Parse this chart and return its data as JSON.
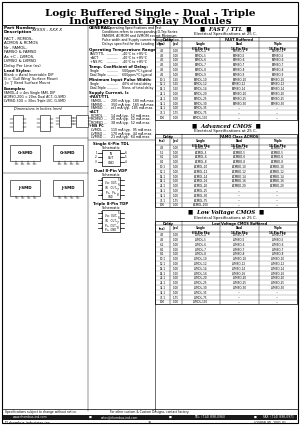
{
  "title_line1": "Logic Buffered Single - Dual - Triple",
  "title_line2": "Independent Delay Modules",
  "bg_color": "#ffffff",
  "pn_label": "Part Number",
  "pn_desc": "Description",
  "pn_format": "XXXXX - XXX X",
  "pn_lines": [
    [
      "FACT - RCMOS,",
      "ACMOS & RCMOS"
    ],
    [
      "Nr - FAMOL,",
      "FAMSO & FAMSD"
    ],
    [
      "As +C - LVMOS,",
      "LVMSO & LVMSD"
    ]
  ],
  "delay_per_line": "Delay Per Line (ns)",
  "lead_styles_title": "Lead Styles:",
  "lead_styles": [
    "Blank = Axial Insertable DIP",
    "G = 'Gull Wing' Surface Mount",
    "J = 'J' Bend Surface Mount"
  ],
  "examples_title": "Examples:",
  "examples": [
    "FAMOL-4 = 4ns Single FAM, DIP",
    "ACMSO-20G = 20ns Dual ACT, G-SMD",
    "LVMSD-30G = 30ns Triple LVC, G-SMD"
  ],
  "general_title": "GENERAL:",
  "general_text": [
    "For Operating Specifications and Test",
    "Conditions refers to corresponding D-Tap Series",
    "FAMOM, ACMOM and LVMOM except Minimum",
    "Pulse width and Supply current ratings as below.",
    "Delays specified for the Leading Edge."
  ],
  "op_temp_title": "Operating Temperature Range",
  "op_temp": [
    [
      "FAST/TTL",
      "-40°C to +85°C"
    ],
    [
      "+ACT",
      "-40°C to +85°C"
    ],
    [
      "+NS PC",
      "-40°C to +85°C"
    ]
  ],
  "temp_coeff_title": "Temp. Coefficient of Delay:",
  "temp_coeff": [
    [
      "Single",
      "500ppm/°C typical"
    ],
    [
      "Dual-Triple",
      "600ppm/°C typical"
    ]
  ],
  "min_pulse_title": "Minimum Input Pulse Width:",
  "min_pulse": [
    [
      "Single",
      "40% of total delay"
    ],
    [
      "Dual-Triple",
      "None, of total delay"
    ]
  ],
  "supply_title": "Supply Current, I",
  "supply_fast": [
    [
      "FAMOL ...",
      "200 mA typ.",
      "180 mA max."
    ],
    [
      "FAMSO ...",
      "350 mA typ.",
      "165 mA max."
    ],
    [
      "FAMSD ...",
      "et1 mA typ.",
      "185 mA max."
    ]
  ],
  "supply_act": [
    [
      "RCMOL ...",
      "14 mA typ.",
      "52 mA max."
    ],
    [
      "RCMSO ...",
      "20 mA typ.",
      "52 mA max."
    ],
    [
      "RCMSD ...",
      "38 mA typ.",
      "52 mA max."
    ]
  ],
  "supply_lvc": [
    [
      "LVMOL ...",
      "110 mA typ.",
      "95 mA max."
    ],
    [
      "LVMSO ...",
      "170 mA typ.",
      "44 mA max."
    ],
    [
      "LVMSD ...",
      "21 mA typ.",
      "84 mA max."
    ]
  ],
  "sch_single_title": "Single 6-Pin TDL",
  "sch_dual_title": "Dual 8-Pin VDP",
  "sch_triple_title": "Triple 8-Pin TDP",
  "fast_ttl_title": "FAST / TTL",
  "fast_sub": "FAST Buffered",
  "fast_rows": [
    [
      "4.5",
      "1.00",
      "FAMOL-4",
      "FAMBO-4",
      "FAMBO-4"
    ],
    [
      "4.5",
      "1.00",
      "FAMOL-5",
      "FAMBO-5",
      "FAMBO-5"
    ],
    [
      "4.5",
      "1.00",
      "FAMOL-6",
      "FAMBO-6",
      "FAMBO-6"
    ],
    [
      "4.5",
      "1.00",
      "FAMOL-7",
      "FAMBO-7",
      "FAMBO-7"
    ],
    [
      "4.5",
      "1.00",
      "FAMOL-8",
      "FAMBO-8",
      "FAMBO-8"
    ],
    [
      "4.5",
      "1.00",
      "FAMOL-9",
      "FAMBO-9",
      "FAMBO-9"
    ],
    [
      "10.1",
      "1.50",
      "FAMOL-10",
      "FAMBO-10",
      "FAMBO-10"
    ],
    [
      "12.1",
      "1.50",
      "FAMOL-12",
      "FAMBO-12",
      "FAMBO-12"
    ],
    [
      "14.1",
      "1.50",
      "FAMOL-14",
      "FAMBO-14",
      "FAMBO-14"
    ],
    [
      "24.1",
      "1.00",
      "FAMOL-20",
      "FAMBO-20",
      "FAMBO-20"
    ],
    [
      "24.1",
      "1.00",
      "FAMOL-25",
      "FAMBO-25",
      "FAMBO-25"
    ],
    [
      "34.1",
      "1.00",
      "FAMOL-30",
      "FAMBO-30",
      "FAMBO-30"
    ],
    [
      "34.1",
      "1.00",
      "FAMOL-35",
      "---",
      "---"
    ],
    [
      "75.1",
      "1.75",
      "FAMOL-75",
      "---",
      "---"
    ],
    [
      "100",
      "1.00",
      "FAMOL-100",
      "---",
      "---"
    ]
  ],
  "adv_cmos_title": "Advanced CMOS",
  "adv_sub": "FAMO Class ACMOS",
  "adv_rows": [
    [
      "4.5",
      "1.00",
      "ACMOL-4",
      "ACMBO-4",
      "ACMBO-4"
    ],
    [
      "5.1",
      "1.00",
      "ACMOL-5",
      "ACMBO-5",
      "ACMBO-5"
    ],
    [
      "6.1",
      "1.00",
      "ACMOL-6",
      "ACMBO-6",
      "ACMBO-6"
    ],
    [
      "8.1",
      "1.00",
      "ACMOL-8",
      "ACMBO-8",
      "ACMBO-8"
    ],
    [
      "10.1",
      "1.00",
      "ACMOL-10",
      "ACMBO-10",
      "ACMBO-10"
    ],
    [
      "12.1",
      "1.00",
      "ACMOL-12",
      "ACMBO-12",
      "ACMBO-12"
    ],
    [
      "14.1",
      "1.00",
      "ACMOL-14",
      "ACMBO-14",
      "ACMBO-14"
    ],
    [
      "14.1",
      "1.00",
      "ACMOL-16",
      "ACMBO-16",
      "ACMBO-16"
    ],
    [
      "24.1",
      "1.00",
      "ACMOL-20",
      "ACMBO-20",
      "ACMBO-20"
    ],
    [
      "34.1",
      "1.00",
      "ACMOL-25",
      "---",
      "---"
    ],
    [
      "34.1",
      "1.00",
      "ACMOL-30",
      "---",
      "---"
    ],
    [
      "75.1",
      "1.75",
      "ACMOL-75",
      "---",
      "---"
    ],
    [
      "100",
      "1.00",
      "ACMOL-100",
      "---",
      "---"
    ]
  ],
  "lvc_title": "Low Voltage CMOS",
  "lvc_sub": "Low Voltage CMOS Buffered",
  "lvc_rows": [
    [
      "4.5",
      "1.00",
      "LVMOL-4",
      "LVMBO-4",
      "LVMBO-4"
    ],
    [
      "4.5",
      "1.00",
      "LVMOL-5",
      "LVMBO-5",
      "LVMBO-5"
    ],
    [
      "6.1",
      "1.00",
      "LVMOL-6",
      "LVMBO-6",
      "LVMBO-6"
    ],
    [
      "8.1",
      "1.00",
      "LVMOL-7",
      "LVMBO-7",
      "LVMBO-7"
    ],
    [
      "8.1",
      "1.00",
      "LVMOL-8",
      "LVMBO-8",
      "LVMBO-8"
    ],
    [
      "10.1",
      "1.00",
      "LVMOL-10",
      "LVMBO-10",
      "LVMBO-10"
    ],
    [
      "12.1",
      "1.00",
      "LVMOL-12",
      "LVMBO-12",
      "LVMBO-12"
    ],
    [
      "14.1",
      "1.00",
      "LVMOL-14",
      "LVMBO-14",
      "LVMBO-14"
    ],
    [
      "14.1",
      "1.50",
      "LVMOL-16",
      "LVMBO-16",
      "LVMBO-16"
    ],
    [
      "24.1",
      "1.00",
      "LVMOL-20",
      "LVMBO-20",
      "LVMBO-20"
    ],
    [
      "24.1",
      "1.00",
      "LVMOL-25",
      "LVMBO-25",
      "LVMBO-25"
    ],
    [
      "34.1",
      "1.00",
      "LVMOL-30",
      "LVMBO-30",
      "LVMBO-30"
    ],
    [
      "34.1",
      "1.00",
      "LVMOL-35",
      "---",
      "---"
    ],
    [
      "75.1",
      "1.75",
      "LVMOL-75",
      "---",
      "---"
    ],
    [
      "100",
      "1.00",
      "LVMOL-100",
      "---",
      "---"
    ]
  ],
  "footer_notice": "Specifications subject to change without notice.",
  "footer_custom": "For other custom & Custom Designs, contact factory.",
  "footer_website": "www.rhombus-ind.com",
  "footer_bullet1": "■",
  "footer_email": "sales@rhombus-ind.com",
  "footer_bullet2": "■",
  "footer_tel": "TEL: (714) 898-0960",
  "footer_bullet3": "■",
  "footer_fax": "FAX: (714) 898-0971",
  "footer_logo": "Π rhombus industries inc.",
  "footer_page": "25",
  "footer_doc": "LOG8SR-9D  2001-01"
}
